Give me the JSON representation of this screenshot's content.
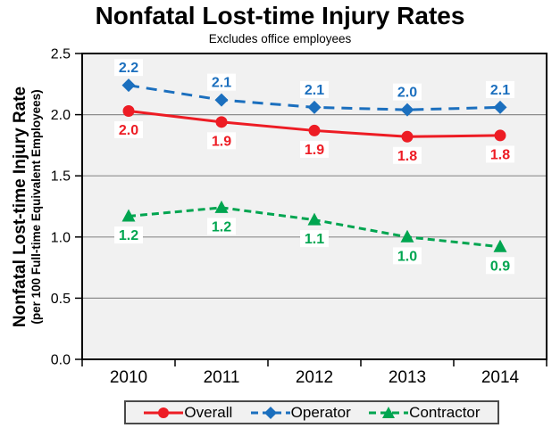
{
  "page": {
    "title": "Nonfatal Lost-time Injury Rates",
    "subtitle": "Excludes office employees"
  },
  "y_axis": {
    "title_line1": "Nonfatal Lost-time Injury Rate",
    "title_line2": "(per 100 Full-time Equivalent Employees)",
    "tick_labels": [
      "0.0",
      "0.5",
      "1.0",
      "1.5",
      "2.0",
      "2.5"
    ]
  },
  "chart_data": {
    "type": "line",
    "title": "Nonfatal Lost-time Injury Rates",
    "subtitle": "Excludes office employees",
    "categories": [
      "2010",
      "2011",
      "2012",
      "2013",
      "2014"
    ],
    "series": [
      {
        "name": "Overall",
        "color": "#ED1C24",
        "marker": "circle",
        "line_style": "solid",
        "dash": "",
        "values": [
          2.0,
          1.9,
          1.9,
          1.8,
          1.8
        ],
        "labels": [
          "2.0",
          "1.9",
          "1.9",
          "1.8",
          "1.8"
        ],
        "plotted_values": [
          2.03,
          1.94,
          1.87,
          1.82,
          1.83
        ],
        "label_position": "below"
      },
      {
        "name": "Operator",
        "color": "#1B6FBE",
        "marker": "diamond",
        "line_style": "dashed",
        "dash": "12,8",
        "values": [
          2.2,
          2.1,
          2.1,
          2.0,
          2.1
        ],
        "labels": [
          "2.2",
          "2.1",
          "2.1",
          "2.0",
          "2.1"
        ],
        "plotted_values": [
          2.24,
          2.12,
          2.06,
          2.04,
          2.06
        ],
        "label_position": "above"
      },
      {
        "name": "Contractor",
        "color": "#00A550",
        "marker": "triangle",
        "line_style": "dashed",
        "dash": "8,5",
        "values": [
          1.2,
          1.2,
          1.1,
          1.0,
          0.9
        ],
        "labels": [
          "1.2",
          "1.2",
          "1.1",
          "1.0",
          "0.9"
        ],
        "plotted_values": [
          1.17,
          1.24,
          1.14,
          1.0,
          0.92
        ],
        "label_position": "below"
      }
    ],
    "xlabel": "",
    "ylabel": "Nonfatal Lost-time Injury Rate (per 100 Full-time Equivalent Employees)",
    "ylim": [
      0,
      2.5
    ],
    "y_step": 0.5,
    "grid": true,
    "legend_position": "bottom",
    "plot_bg": "#F1F1F1",
    "grid_color": "#8C8C8C",
    "axis_color": "#000000",
    "label_box_bg": "#FFFFFF"
  }
}
